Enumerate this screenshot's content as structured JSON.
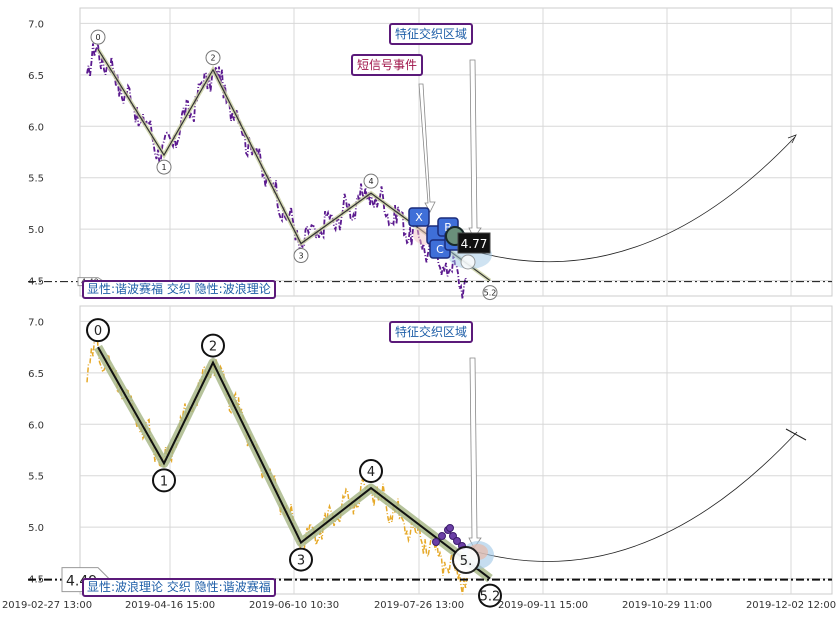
{
  "chart_data": [
    {
      "type": "line",
      "panel": "top",
      "ylim": [
        4.35,
        7.15
      ],
      "yticks": [
        4.5,
        5.0,
        5.5,
        6.0,
        6.5,
        7.0
      ],
      "ytick_labels": [
        "4.5",
        "5.0",
        "5.5",
        "6.0",
        "6.5",
        "7.0"
      ],
      "grid": true,
      "price_line_color": "#5b1a8f",
      "wave_line_color": "#333333",
      "wave_points": [
        {
          "label": "0",
          "value": 6.75
        },
        {
          "label": "1",
          "value": 5.72
        },
        {
          "label": "2",
          "value": 6.55
        },
        {
          "label": "3",
          "value": 4.86
        },
        {
          "label": "4",
          "value": 5.35
        },
        {
          "label": "5.2",
          "value": 4.5
        }
      ],
      "hline": {
        "value": 4.49,
        "label": "4.49"
      },
      "current_value_label": "4.77",
      "markers": [
        "X",
        "B",
        "C"
      ],
      "annotations": {
        "feature_zone": "特征交织区域",
        "short_signal": "短信号事件"
      },
      "legend": "显性:谐波赛福 交织 隐性:波浪理论"
    },
    {
      "type": "line",
      "panel": "bottom",
      "ylim": [
        4.35,
        7.15
      ],
      "yticks": [
        4.5,
        5.0,
        5.5,
        6.0,
        6.5,
        7.0
      ],
      "ytick_labels": [
        "4.5",
        "5.0",
        "5.5",
        "6.0",
        "6.5",
        "7.0"
      ],
      "grid": true,
      "price_line_color": "#e6a928",
      "wave_line_color": "#111111",
      "wave_highlight_color": "#a9b98a",
      "wave_points": [
        {
          "label": "0",
          "value": 6.75
        },
        {
          "label": "1",
          "value": 5.62
        },
        {
          "label": "2",
          "value": 6.6
        },
        {
          "label": "3",
          "value": 4.85
        },
        {
          "label": "4",
          "value": 5.38
        },
        {
          "label": "5.2",
          "value": 4.5
        }
      ],
      "hline": {
        "value": 4.49,
        "label": "4.49"
      },
      "partial_label": "5.",
      "annotations": {
        "feature_zone": "特征交织区域"
      },
      "legend": "显性:波浪理论 交织 隐性:谐波赛福"
    }
  ],
  "x_axis": {
    "tick_labels": [
      "2019-02-27 13:00",
      "2019-04-16 15:00",
      "2019-06-10 10:30",
      "2019-07-26 13:00",
      "2019-09-11 15:00",
      "2019-10-29 11:00",
      "2019-12-02 12:00"
    ]
  }
}
